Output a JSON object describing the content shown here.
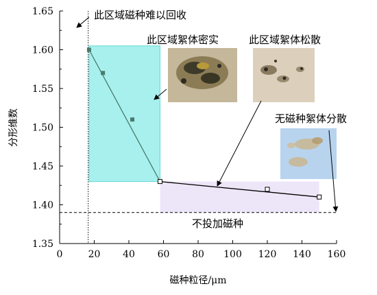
{
  "chart_data": {
    "type": "scatter",
    "title": "",
    "xlabel": "磁种粒径/μm",
    "ylabel": "分形维数",
    "xlim": [
      0,
      160
    ],
    "ylim": [
      1.35,
      1.65
    ],
    "xticks": [
      0,
      20,
      40,
      60,
      80,
      100,
      120,
      140,
      160
    ],
    "yticks": [
      1.35,
      1.4,
      1.45,
      1.5,
      1.55,
      1.6,
      1.65
    ],
    "grid": false,
    "series": [
      {
        "marker": "filled-square",
        "color": "#4a7a6a",
        "points": [
          {
            "x": 17,
            "y": 1.6
          },
          {
            "x": 25,
            "y": 1.57
          },
          {
            "x": 42,
            "y": 1.51
          }
        ]
      },
      {
        "marker": "open-square",
        "color": "#000000",
        "points": [
          {
            "x": 58,
            "y": 1.43
          },
          {
            "x": 120,
            "y": 1.42
          },
          {
            "x": 150,
            "y": 1.41
          }
        ]
      }
    ],
    "trend_lines": [
      {
        "color": "#4a7a6a",
        "from": {
          "x": 17,
          "y": 1.6
        },
        "to": {
          "x": 58,
          "y": 1.43
        }
      },
      {
        "color": "#000000",
        "from": {
          "x": 58,
          "y": 1.43
        },
        "to": {
          "x": 150,
          "y": 1.41
        }
      }
    ],
    "reference_lines": [
      {
        "orientation": "vertical",
        "x": 16.5,
        "style": "dotted"
      },
      {
        "orientation": "horizontal",
        "y": 1.39,
        "style": "dashed"
      }
    ],
    "regions": [
      {
        "x": [
          17,
          58
        ],
        "y": [
          1.43,
          1.605
        ],
        "color": "#a8f0ee"
      },
      {
        "x": [
          58,
          150
        ],
        "y": [
          1.39,
          1.43
        ],
        "color": "#ede6f8"
      }
    ],
    "annotations": {
      "hard_recover": "此区域磁种难以回收",
      "dense": "此区域絮体密实",
      "loose": "此区域絮体松散",
      "no_seed": "无磁种絮体分散",
      "no_add": "不投加磁种"
    }
  },
  "colors": {
    "cyan_region": "#a8f0ee",
    "cyan_border": "#5fd8d6",
    "purple_region": "#ede6f8",
    "series_dark": "#4a7a6a",
    "photo_dense": "#b8ab8a",
    "photo_loose": "#ddd2c0",
    "photo_noseed": "#b9d5ee"
  }
}
